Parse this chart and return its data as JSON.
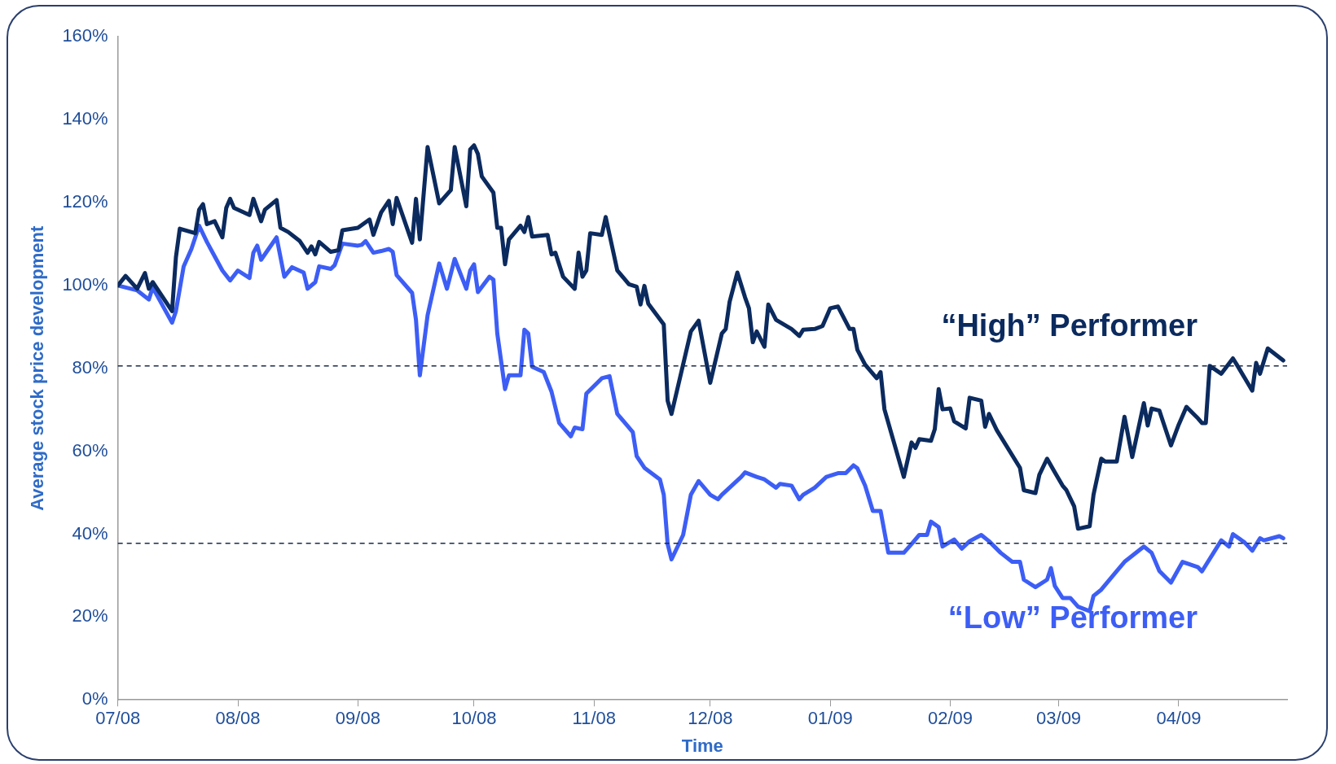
{
  "chart_data": {
    "type": "line",
    "xlabel": "Time",
    "ylabel": "Average stock price development",
    "xlim": [
      "2008-07-01",
      "2009-04-29"
    ],
    "xticks": [
      {
        "value": "2008-07",
        "label": "07/08"
      },
      {
        "value": "2008-08",
        "label": "08/08"
      },
      {
        "value": "2008-09",
        "label": "09/08"
      },
      {
        "value": "2008-10",
        "label": "10/08"
      },
      {
        "value": "2008-11",
        "label": "11/08"
      },
      {
        "value": "2008-12",
        "label": "12/08"
      },
      {
        "value": "2009-01",
        "label": "01/09"
      },
      {
        "value": "2009-02",
        "label": "02/09"
      },
      {
        "value": "2009-03",
        "label": "03/09"
      },
      {
        "value": "2009-04",
        "label": "04/09"
      }
    ],
    "ylim": [
      0,
      160
    ],
    "yticks": [
      {
        "value": 0,
        "label": "0%"
      },
      {
        "value": 20,
        "label": "20%"
      },
      {
        "value": 40,
        "label": "40%"
      },
      {
        "value": 60,
        "label": "60%"
      },
      {
        "value": 80,
        "label": "80%"
      },
      {
        "value": 100,
        "label": "100%"
      },
      {
        "value": 120,
        "label": "120%"
      },
      {
        "value": 140,
        "label": "140%"
      },
      {
        "value": 160,
        "label": "160%"
      }
    ],
    "grid": false,
    "legend": false,
    "marker": "none",
    "line_style": "solid",
    "ref_lines": [
      {
        "axis": "y",
        "value": 80.6,
        "color": "#1a2a4a",
        "line_style": "dashed"
      },
      {
        "axis": "y",
        "value": 37.8,
        "color": "#1a2a4a",
        "line_style": "dashed"
      }
    ],
    "series": [
      {
        "name": "“High” Performer",
        "color": "#0b2a5e",
        "x": [
          "2008-07-01",
          "2008-07-03",
          "2008-07-06",
          "2008-07-08",
          "2008-07-09",
          "2008-07-10",
          "2008-07-15",
          "2008-07-16",
          "2008-07-17",
          "2008-07-21",
          "2008-07-22",
          "2008-07-23",
          "2008-07-24",
          "2008-07-26",
          "2008-07-28",
          "2008-07-29",
          "2008-07-30",
          "2008-07-31",
          "2008-08-04",
          "2008-08-05",
          "2008-08-07",
          "2008-08-08",
          "2008-08-11",
          "2008-08-12",
          "2008-08-14",
          "2008-08-17",
          "2008-08-19",
          "2008-08-20",
          "2008-08-21",
          "2008-08-22",
          "2008-08-25",
          "2008-08-27",
          "2008-08-28",
          "2008-09-01",
          "2008-09-04",
          "2008-09-05",
          "2008-09-07",
          "2008-09-09",
          "2008-09-10",
          "2008-09-11",
          "2008-09-15",
          "2008-09-16",
          "2008-09-17",
          "2008-09-19",
          "2008-09-22",
          "2008-09-23",
          "2008-09-25",
          "2008-09-26",
          "2008-09-29",
          "2008-09-30",
          "2008-10-01",
          "2008-10-02",
          "2008-10-03",
          "2008-10-06",
          "2008-10-07",
          "2008-10-08",
          "2008-10-09",
          "2008-10-10",
          "2008-10-13",
          "2008-10-14",
          "2008-10-15",
          "2008-10-16",
          "2008-10-20",
          "2008-10-21",
          "2008-10-22",
          "2008-10-24",
          "2008-10-27",
          "2008-10-28",
          "2008-10-29",
          "2008-10-30",
          "2008-10-31",
          "2008-11-03",
          "2008-11-04",
          "2008-11-06",
          "2008-11-07",
          "2008-11-10",
          "2008-11-12",
          "2008-11-13",
          "2008-11-14",
          "2008-11-15",
          "2008-11-19",
          "2008-11-20",
          "2008-11-21",
          "2008-11-26",
          "2008-11-28",
          "2008-12-01",
          "2008-12-04",
          "2008-12-05",
          "2008-12-06",
          "2008-12-08",
          "2008-12-10",
          "2008-12-11",
          "2008-12-12",
          "2008-12-13",
          "2008-12-15",
          "2008-12-16",
          "2008-12-18",
          "2008-12-22",
          "2008-12-24",
          "2008-12-25",
          "2008-12-28",
          "2008-12-30",
          "2009-01-01",
          "2009-01-03",
          "2009-01-06",
          "2009-01-07",
          "2009-01-08",
          "2009-01-10",
          "2009-01-13",
          "2009-01-14",
          "2009-01-15",
          "2009-01-20",
          "2009-01-22",
          "2009-01-23",
          "2009-01-24",
          "2009-01-27",
          "2009-01-28",
          "2009-01-29",
          "2009-01-30",
          "2009-02-01",
          "2009-02-02",
          "2009-02-05",
          "2009-02-06",
          "2009-02-09",
          "2009-02-10",
          "2009-02-11",
          "2009-02-13",
          "2009-02-19",
          "2009-02-20",
          "2009-02-23",
          "2009-02-24",
          "2009-02-26",
          "2009-02-28",
          "2009-03-02",
          "2009-03-03",
          "2009-03-05",
          "2009-03-06",
          "2009-03-09",
          "2009-03-10",
          "2009-03-12",
          "2009-03-13",
          "2009-03-16",
          "2009-03-18",
          "2009-03-20",
          "2009-03-23",
          "2009-03-24",
          "2009-03-25",
          "2009-03-27",
          "2009-03-30",
          "2009-04-01",
          "2009-04-03",
          "2009-04-06",
          "2009-04-07",
          "2009-04-08",
          "2009-04-09",
          "2009-04-12",
          "2009-04-15",
          "2009-04-16",
          "2009-04-20",
          "2009-04-21",
          "2009-04-22",
          "2009-04-24",
          "2009-04-28"
        ],
        "values": [
          100,
          102.3,
          99.2,
          103,
          99.2,
          100.8,
          93.8,
          106.8,
          113.7,
          112.6,
          118.3,
          119.6,
          114.8,
          115.5,
          111.6,
          118.7,
          120.9,
          118.7,
          117,
          120.9,
          115.5,
          118.3,
          120.6,
          113.9,
          112.9,
          110.7,
          107.9,
          109.4,
          107.5,
          110.5,
          108.1,
          108.5,
          113.3,
          113.9,
          115.9,
          112.2,
          117.6,
          120.4,
          114.8,
          121.1,
          110.3,
          120.9,
          111.1,
          133.4,
          119.8,
          120.9,
          123,
          133.4,
          119.1,
          132.8,
          133.8,
          131.7,
          126.3,
          122.4,
          113.9,
          113.9,
          105.1,
          111.1,
          114.4,
          112.9,
          116.5,
          111.8,
          112.2,
          107.5,
          107.9,
          102.1,
          99.2,
          107.9,
          102.1,
          103.6,
          112.6,
          112.2,
          116.5,
          107.9,
          103.6,
          100.3,
          99.7,
          95.4,
          99.9,
          95.6,
          90.6,
          72.2,
          69,
          88.9,
          91.5,
          76.5,
          88.4,
          89.5,
          96,
          103.1,
          97.1,
          94.5,
          86.3,
          88.9,
          85.2,
          95.4,
          91.7,
          89.5,
          87.8,
          89.3,
          89.5,
          90.2,
          94.5,
          94.9,
          89.5,
          89.5,
          84.5,
          80.9,
          77.6,
          79.1,
          70.1,
          53.8,
          62.1,
          60.8,
          62.9,
          62.5,
          65.3,
          75,
          70.1,
          70.3,
          67.2,
          65.5,
          72.9,
          72.2,
          65.9,
          69,
          65.1,
          56,
          50.6,
          49.9,
          54.3,
          58.2,
          54.9,
          51.7,
          50.6,
          46.7,
          41.3,
          41.9,
          49.5,
          58.2,
          57.5,
          57.5,
          68.3,
          58.6,
          71.6,
          66.2,
          70.3,
          69.8,
          61.4,
          66.4,
          70.7,
          67.9,
          66.8,
          66.8,
          80.6,
          78.7,
          82.4,
          80.9,
          74.6,
          81.3,
          78.7,
          84.8,
          81.9
        ]
      },
      {
        "name": "“Low” Performer",
        "color": "#3d5ef5",
        "x": [
          "2008-07-01",
          "2008-07-06",
          "2008-07-09",
          "2008-07-10",
          "2008-07-15",
          "2008-07-16",
          "2008-07-18",
          "2008-07-20",
          "2008-07-22",
          "2008-07-24",
          "2008-07-28",
          "2008-07-30",
          "2008-08-01",
          "2008-08-04",
          "2008-08-05",
          "2008-08-06",
          "2008-08-07",
          "2008-08-11",
          "2008-08-13",
          "2008-08-15",
          "2008-08-18",
          "2008-08-19",
          "2008-08-21",
          "2008-08-22",
          "2008-08-25",
          "2008-08-26",
          "2008-08-28",
          "2008-09-01",
          "2008-09-02",
          "2008-09-03",
          "2008-09-05",
          "2008-09-07",
          "2008-09-09",
          "2008-09-10",
          "2008-09-11",
          "2008-09-15",
          "2008-09-16",
          "2008-09-17",
          "2008-09-19",
          "2008-09-22",
          "2008-09-24",
          "2008-09-26",
          "2008-09-29",
          "2008-09-30",
          "2008-10-01",
          "2008-10-02",
          "2008-10-05",
          "2008-10-06",
          "2008-10-07",
          "2008-10-09",
          "2008-10-10",
          "2008-10-13",
          "2008-10-14",
          "2008-10-15",
          "2008-10-16",
          "2008-10-19",
          "2008-10-21",
          "2008-10-23",
          "2008-10-26",
          "2008-10-27",
          "2008-10-29",
          "2008-10-30",
          "2008-11-03",
          "2008-11-05",
          "2008-11-07",
          "2008-11-11",
          "2008-11-12",
          "2008-11-14",
          "2008-11-18",
          "2008-11-19",
          "2008-11-20",
          "2008-11-21",
          "2008-11-24",
          "2008-11-26",
          "2008-11-28",
          "2008-12-01",
          "2008-12-03",
          "2008-12-04",
          "2008-12-09",
          "2008-12-10",
          "2008-12-13",
          "2008-12-15",
          "2008-12-18",
          "2008-12-19",
          "2008-12-22",
          "2008-12-24",
          "2008-12-25",
          "2008-12-28",
          "2008-12-31",
          "2009-01-03",
          "2009-01-05",
          "2009-01-07",
          "2009-01-08",
          "2009-01-10",
          "2009-01-12",
          "2009-01-14",
          "2009-01-16",
          "2009-01-20",
          "2009-01-22",
          "2009-01-24",
          "2009-01-26",
          "2009-01-27",
          "2009-01-29",
          "2009-01-30",
          "2009-02-02",
          "2009-02-04",
          "2009-02-06",
          "2009-02-09",
          "2009-02-11",
          "2009-02-14",
          "2009-02-17",
          "2009-02-19",
          "2009-02-20",
          "2009-02-23",
          "2009-02-26",
          "2009-02-27",
          "2009-02-28",
          "2009-03-02",
          "2009-03-04",
          "2009-03-06",
          "2009-03-09",
          "2009-03-10",
          "2009-03-12",
          "2009-03-16",
          "2009-03-18",
          "2009-03-23",
          "2009-03-25",
          "2009-03-27",
          "2009-03-30",
          "2009-04-02",
          "2009-04-06",
          "2009-04-07",
          "2009-04-12",
          "2009-04-14",
          "2009-04-15",
          "2009-04-18",
          "2009-04-20",
          "2009-04-22",
          "2009-04-23",
          "2009-04-27",
          "2009-04-28"
        ],
        "values": [
          100,
          98.8,
          96.6,
          99.5,
          91,
          93.8,
          104.6,
          108.8,
          114.4,
          110.5,
          103.6,
          101.2,
          103.6,
          101.8,
          107.9,
          109.6,
          106.2,
          111.6,
          102.1,
          104.4,
          103.1,
          99.2,
          100.8,
          104.6,
          104,
          104.9,
          110.1,
          109.6,
          109.8,
          110.7,
          107.9,
          108.3,
          108.8,
          108.1,
          102.5,
          98.2,
          91.7,
          78.3,
          92.8,
          105.3,
          99.2,
          106.4,
          99.2,
          103.6,
          105.1,
          98.4,
          102.1,
          101.4,
          88.4,
          75,
          78.3,
          78.3,
          89.3,
          88.4,
          80.4,
          79.1,
          74.4,
          66.8,
          63.6,
          65.7,
          65.3,
          73.9,
          77.6,
          78.1,
          69,
          64.6,
          58.8,
          56,
          53.2,
          49.5,
          37.6,
          33.9,
          39.8,
          49.5,
          52.8,
          49.5,
          48.4,
          49.5,
          53.8,
          54.9,
          53.8,
          53.2,
          51.2,
          52.1,
          51.7,
          48.4,
          49.5,
          51.2,
          53.8,
          54.7,
          54.7,
          56.6,
          55.9,
          51.7,
          45.6,
          45.6,
          35.5,
          35.5,
          37.6,
          39.8,
          39.8,
          43,
          41.7,
          37,
          38.7,
          36.5,
          38.3,
          39.8,
          38.3,
          35.5,
          33.3,
          33.3,
          29,
          27.2,
          29,
          31.8,
          27.5,
          24.6,
          24.6,
          22.5,
          21.4,
          25.1,
          26.6,
          31.1,
          33.3,
          37,
          35.5,
          31.1,
          28.3,
          33.3,
          32,
          31,
          38.5,
          37,
          40,
          38,
          36,
          39,
          38.5,
          39.5,
          39
        ]
      }
    ]
  }
}
